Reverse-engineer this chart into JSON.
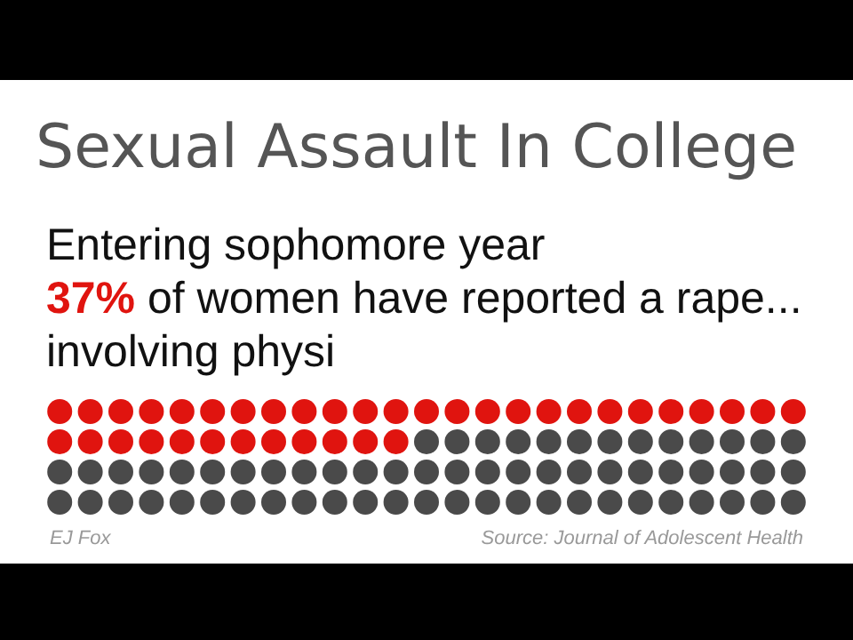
{
  "chart_data": {
    "type": "other",
    "title": "Sexual Assault In College",
    "subtitle": "Entering sophomore year",
    "values": [
      37
    ],
    "value_labels": [
      "37%"
    ],
    "color": "#e0140f",
    "annotations": [
      "of women have reported a rape...\ninvolving physi",
      "EJ Fox",
      "Source: Journal of Adolescent Health"
    ]
  }
}
